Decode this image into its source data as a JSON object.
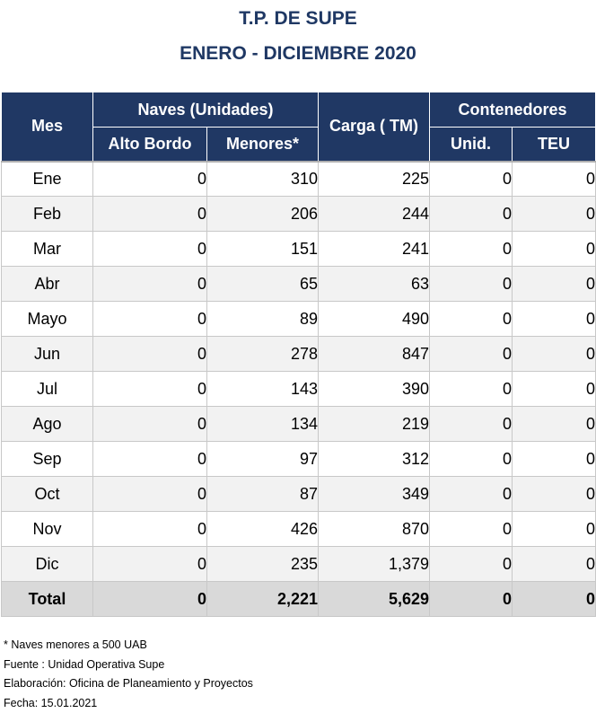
{
  "title": "T.P. DE SUPE",
  "subtitle": "ENERO - DICIEMBRE 2020",
  "headers": {
    "mes": "Mes",
    "naves": "Naves (Unidades)",
    "alto_bordo": "Alto Bordo",
    "menores": "Menores*",
    "carga": "Carga ( TM)",
    "contenedores": "Contenedores",
    "unid": "Unid.",
    "teu": "TEU"
  },
  "rows": [
    {
      "mes": "Ene",
      "alto_bordo": "0",
      "menores": "310",
      "carga": "225",
      "unid": "0",
      "teu": "0"
    },
    {
      "mes": "Feb",
      "alto_bordo": "0",
      "menores": "206",
      "carga": "244",
      "unid": "0",
      "teu": "0"
    },
    {
      "mes": "Mar",
      "alto_bordo": "0",
      "menores": "151",
      "carga": "241",
      "unid": "0",
      "teu": "0"
    },
    {
      "mes": "Abr",
      "alto_bordo": "0",
      "menores": "65",
      "carga": "63",
      "unid": "0",
      "teu": "0"
    },
    {
      "mes": "Mayo",
      "alto_bordo": "0",
      "menores": "89",
      "carga": "490",
      "unid": "0",
      "teu": "0"
    },
    {
      "mes": "Jun",
      "alto_bordo": "0",
      "menores": "278",
      "carga": "847",
      "unid": "0",
      "teu": "0"
    },
    {
      "mes": "Jul",
      "alto_bordo": "0",
      "menores": "143",
      "carga": "390",
      "unid": "0",
      "teu": "0"
    },
    {
      "mes": "Ago",
      "alto_bordo": "0",
      "menores": "134",
      "carga": "219",
      "unid": "0",
      "teu": "0"
    },
    {
      "mes": "Sep",
      "alto_bordo": "0",
      "menores": "97",
      "carga": "312",
      "unid": "0",
      "teu": "0"
    },
    {
      "mes": "Oct",
      "alto_bordo": "0",
      "menores": "87",
      "carga": "349",
      "unid": "0",
      "teu": "0"
    },
    {
      "mes": "Nov",
      "alto_bordo": "0",
      "menores": "426",
      "carga": "870",
      "unid": "0",
      "teu": "0"
    },
    {
      "mes": "Dic",
      "alto_bordo": "0",
      "menores": "235",
      "carga": "1,379",
      "unid": "0",
      "teu": "0"
    }
  ],
  "total": {
    "mes": "Total",
    "alto_bordo": "0",
    "menores": "2,221",
    "carga": "5,629",
    "unid": "0",
    "teu": "0"
  },
  "notes": {
    "footnote": "* Naves menores a 500 UAB",
    "fuente": "Fuente : Unidad Operativa Supe",
    "elaboracion": "Elaboración: Oficina de Planeamiento y Proyectos",
    "fecha": "Fecha: 15.01.2021"
  },
  "colors": {
    "title": "#1f3864",
    "header_bg": "#203864",
    "row_alt_bg": "#f2f2f2",
    "total_bg": "#d9d9d9"
  }
}
